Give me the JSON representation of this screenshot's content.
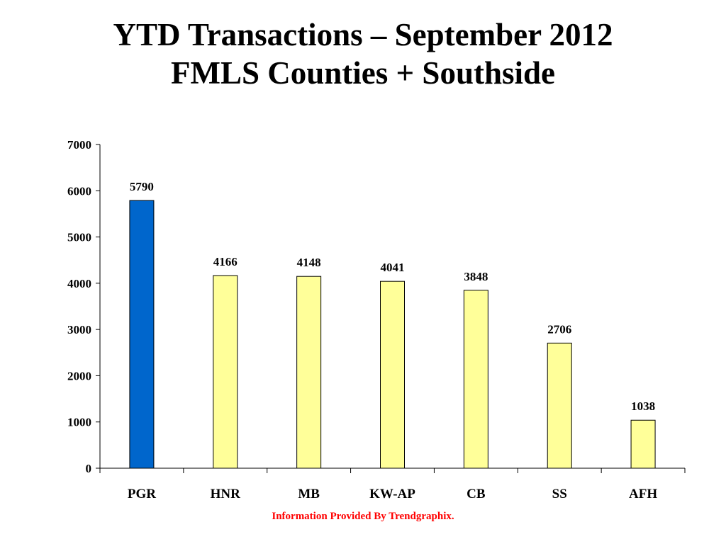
{
  "slide": {
    "title_line1": "YTD Transactions – September 2012",
    "title_line2": "FMLS Counties + Southside",
    "credit": "Information Provided By Trendgraphix."
  },
  "colors": {
    "highlight_bar": "#0066CC",
    "default_bar": "#FFFF99",
    "bar_stroke": "#000000",
    "credit_text": "#FF0000"
  },
  "chart_data": {
    "type": "bar",
    "title": "YTD Transactions – September 2012 FMLS Counties + Southside",
    "xlabel": "",
    "ylabel": "",
    "categories": [
      "PGR",
      "HNR",
      "MB",
      "KW-AP",
      "CB",
      "SS",
      "AFH"
    ],
    "values": [
      5790,
      4166,
      4148,
      4041,
      3848,
      2706,
      1038
    ],
    "data_labels": [
      "5790",
      "4166",
      "4148",
      "4041",
      "3848",
      "2706",
      "1038"
    ],
    "highlight_index": 0,
    "ylim": [
      0,
      7000
    ],
    "yticks": [
      0,
      1000,
      2000,
      3000,
      4000,
      5000,
      6000,
      7000
    ],
    "ytick_labels": [
      "0",
      "1000",
      "2000",
      "3000",
      "4000",
      "5000",
      "6000",
      "7000"
    ],
    "grid": false,
    "legend": "none"
  }
}
